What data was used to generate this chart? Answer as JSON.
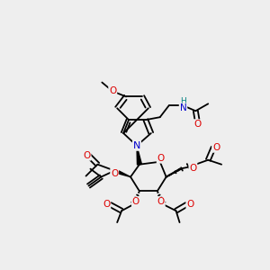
{
  "bg_color": "#eeeeee",
  "atom_colors": {
    "C": "#000000",
    "N": "#0000cc",
    "O": "#dd0000",
    "H": "#008080"
  },
  "bond_color": "#000000",
  "line_width": 1.3,
  "scale": 1.0
}
